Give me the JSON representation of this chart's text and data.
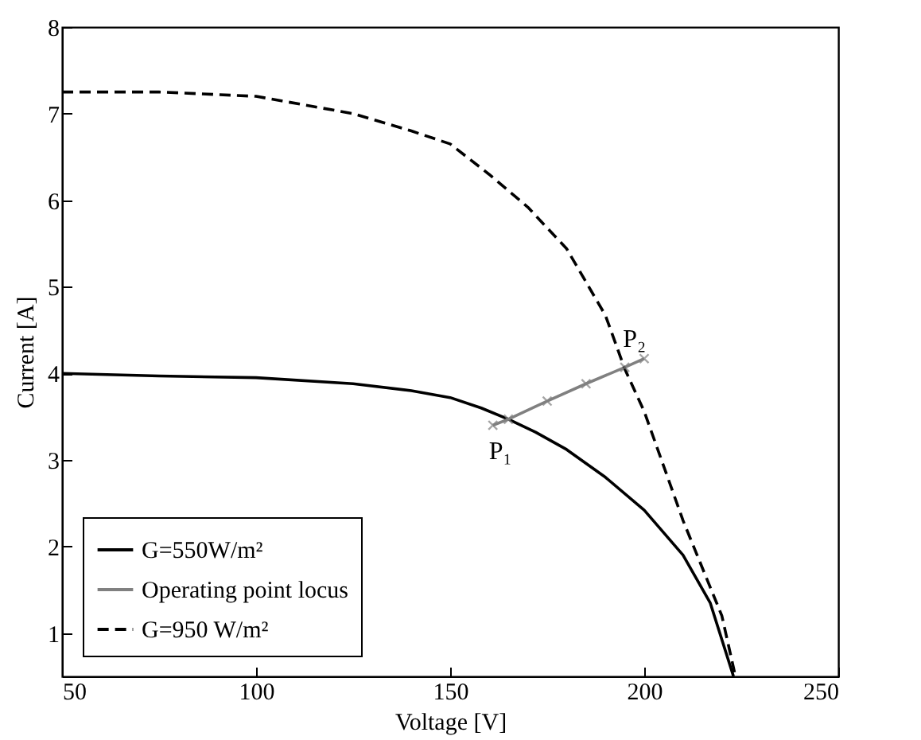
{
  "chart_data": {
    "type": "line",
    "xlabel": "Voltage [V]",
    "ylabel": "Current [A]",
    "xlim": [
      50,
      250
    ],
    "xticks": [
      50,
      100,
      150,
      200,
      250
    ],
    "ylim": [
      0.5,
      8
    ],
    "yticks": [
      1,
      2,
      3,
      4,
      5,
      6,
      7,
      8
    ],
    "grid": false,
    "legend": "bottom left",
    "series": [
      {
        "name": "G=550W/m²",
        "color": "#000000",
        "line_style": "solid",
        "x": [
          50,
          75,
          100,
          125,
          140,
          150,
          158,
          165,
          172,
          180,
          190,
          200,
          210,
          217,
          223
        ],
        "values": [
          4.0,
          3.97,
          3.95,
          3.88,
          3.8,
          3.72,
          3.6,
          3.47,
          3.32,
          3.12,
          2.8,
          2.42,
          1.9,
          1.35,
          0.5
        ]
      },
      {
        "name": "Operating point locus",
        "color": "#808080",
        "line_style": "solid",
        "marker": "cross",
        "x": [
          161,
          165,
          175,
          185,
          195,
          200
        ],
        "values": [
          3.4,
          3.47,
          3.68,
          3.88,
          4.07,
          4.17
        ]
      },
      {
        "name": "G=950 W/m²",
        "color": "#000000",
        "line_style": "dashed",
        "x": [
          50,
          75,
          100,
          125,
          140,
          150,
          160,
          170,
          180,
          190,
          195,
          200,
          210,
          220,
          223.5
        ],
        "values": [
          7.25,
          7.25,
          7.2,
          7.0,
          6.8,
          6.65,
          6.3,
          5.92,
          5.44,
          4.67,
          4.05,
          3.56,
          2.3,
          1.2,
          0.5
        ]
      }
    ],
    "annotations": [
      {
        "text": "P₁",
        "x": 165,
        "y": 3.47
      },
      {
        "text": "P₂",
        "x": 195,
        "y": 4.07
      }
    ]
  }
}
